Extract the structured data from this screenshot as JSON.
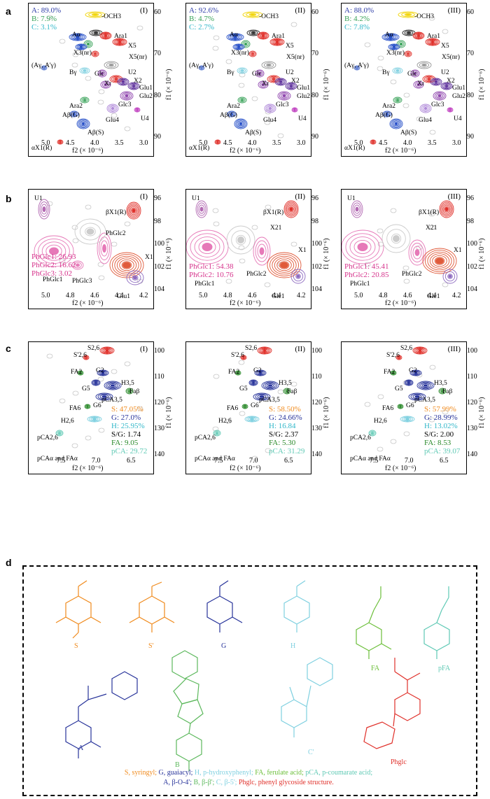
{
  "rows": {
    "a": {
      "label": "a",
      "panels": [
        {
          "tag": "(I)",
          "legend": [
            {
              "text": "A: 89.0%",
              "color": "#2f3ea8"
            },
            {
              "text": "B: 7.9%",
              "color": "#3aa35a"
            },
            {
              "text": "C: 3.1%",
              "color": "#31b7c9"
            }
          ]
        },
        {
          "tag": "(II)",
          "legend": [
            {
              "text": "A: 92.6%",
              "color": "#2f3ea8"
            },
            {
              "text": "B: 4.7%",
              "color": "#3aa35a"
            },
            {
              "text": "C: 2.7%",
              "color": "#31b7c9"
            }
          ]
        },
        {
          "tag": "(III)",
          "legend": [
            {
              "text": "A: 88.0%",
              "color": "#2f3ea8"
            },
            {
              "text": "B: 4.2%",
              "color": "#3aa35a"
            },
            {
              "text": "C: 7.8%",
              "color": "#31b7c9"
            }
          ]
        }
      ],
      "xticks": [
        "5.0",
        "4.5",
        "4.0",
        "3.5",
        "3.0"
      ],
      "yticks": [
        "60",
        "70",
        "80",
        "90"
      ],
      "xtitle": "f2 (× 10⁻⁶)",
      "ytitle": "f1 (× 10⁻⁶)",
      "labels": [
        "-OCH3",
        "Aα",
        "Ara1",
        "X5",
        "X3(nr)",
        "X5(nr)",
        "(Aγ, A'γ)",
        "Bγ",
        "Glc",
        "U2",
        "Xr",
        "X2",
        "Glu1",
        "Glc3",
        "Glu2",
        "Ara2",
        "Glu4",
        "U4",
        "Aβ(G)",
        "Aβ(S)",
        "αX1(R)"
      ]
    },
    "b": {
      "label": "b",
      "panels": [
        {
          "tag": "(I)",
          "legend": [
            {
              "text": "PhGlc1: 26.93"
            },
            {
              "text": "PhGlc2: 16.62"
            },
            {
              "text": "PhGlc3: 3.02"
            }
          ]
        },
        {
          "tag": "(II)",
          "legend": [
            {
              "text": "PhGlc1: 54.38"
            },
            {
              "text": "PhGlc2: 10.76"
            }
          ]
        },
        {
          "tag": "(III)",
          "legend": [
            {
              "text": "PhGlc1: 45.41"
            },
            {
              "text": "PhGlc2: 20.85"
            }
          ]
        }
      ],
      "xticks": [
        "5.0",
        "4.8",
        "4.6",
        "4.4",
        "4.2"
      ],
      "yticks": [
        "96",
        "98",
        "100",
        "102",
        "104"
      ],
      "labels_I": [
        "U1",
        "βX1(R)",
        "PhGlc2",
        "PhGlc1",
        "PhGlc3",
        "X1",
        "Glu1"
      ],
      "labels_II": [
        "U1",
        "βX1(R)",
        "X21",
        "PhGlc1",
        "PhGlc2",
        "X1",
        "Glc1"
      ],
      "labels_III": [
        "U1",
        "βX1(R)",
        "X21",
        "PhGlc1",
        "PhGlc2",
        "X1",
        "Glc1"
      ]
    },
    "c": {
      "label": "c",
      "panels": [
        {
          "tag": "(I)",
          "legend": [
            {
              "text": "S: 47.05%",
              "color": "#f08a1c"
            },
            {
              "text": "G: 27.0%",
              "color": "#27339a"
            },
            {
              "text": "H: 25.95%",
              "color": "#31b7c9"
            },
            {
              "text": "S/G: 1.74",
              "color": "#000000"
            },
            {
              "text": "FA: 9.05",
              "color": "#2b8a2b"
            },
            {
              "text": "pCA: 29.72",
              "color": "#5ec9b4"
            }
          ]
        },
        {
          "tag": "(II)",
          "legend": [
            {
              "text": "S: 58.50%",
              "color": "#f08a1c"
            },
            {
              "text": "G: 24.66%",
              "color": "#27339a"
            },
            {
              "text": "H: 16.84",
              "color": "#31b7c9"
            },
            {
              "text": "S/G: 2.37",
              "color": "#000000"
            },
            {
              "text": "FA: 5.30",
              "color": "#2b8a2b"
            },
            {
              "text": "pCA: 31.29",
              "color": "#5ec9b4"
            }
          ]
        },
        {
          "tag": "(III)",
          "legend": [
            {
              "text": "S: 57.99%",
              "color": "#f08a1c"
            },
            {
              "text": "G: 28.99%",
              "color": "#27339a"
            },
            {
              "text": "H: 13.02%",
              "color": "#31b7c9"
            },
            {
              "text": "S/G: 2.00",
              "color": "#000000"
            },
            {
              "text": "FA: 8.53",
              "color": "#2b8a2b"
            },
            {
              "text": "pCA: 39.07",
              "color": "#5ec9b4"
            }
          ]
        }
      ],
      "xticks": [
        "7.5",
        "7.0",
        "6.5"
      ],
      "yticks": [
        "100",
        "110",
        "120",
        "130",
        "140"
      ],
      "labels": [
        "S'2,6",
        "S2,6",
        "FA2",
        "G2",
        "H3,5",
        "G5",
        "pCA3,5",
        "Faβ",
        "FA6",
        "G6",
        "H2,6",
        "pCA2,6",
        "pCAα and FAα"
      ]
    },
    "d": {
      "label": "d",
      "structures": [
        {
          "name": "S",
          "color": "#f08a1c"
        },
        {
          "name": "S'",
          "color": "#f08a1c"
        },
        {
          "name": "G",
          "color": "#27339a"
        },
        {
          "name": "H",
          "color": "#7fd0e0"
        },
        {
          "name": "FA",
          "color": "#6cbf3a"
        },
        {
          "name": "pFA",
          "color": "#5ec9b4"
        },
        {
          "name": "A",
          "color": "#27339a"
        },
        {
          "name": "B",
          "color": "#5cb85c"
        },
        {
          "name": "C'",
          "color": "#7fd0e0"
        },
        {
          "name": "Phglc",
          "color": "#e0302a"
        }
      ],
      "caption_line1": [
        {
          "text": "S, syringyl; ",
          "color": "#f08a1c"
        },
        {
          "text": "G, guaiacyl; ",
          "color": "#27339a"
        },
        {
          "text": "H, p-hydroxyphenyl; ",
          "color": "#7fd0e0"
        },
        {
          "text": "FA, ferulate acid; ",
          "color": "#6cbf3a"
        },
        {
          "text": "pCA, p-coumarate acid;",
          "color": "#5ec9b4"
        }
      ],
      "caption_line2": [
        {
          "text": "A, β-O-4'; ",
          "color": "#27339a"
        },
        {
          "text": "B, β-β'; ",
          "color": "#5cb85c"
        },
        {
          "text": "C, β-5'; ",
          "color": "#7fd0e0"
        },
        {
          "text": "Phglc, phenyl glycoside structure.",
          "color": "#e0302a"
        }
      ]
    }
  }
}
